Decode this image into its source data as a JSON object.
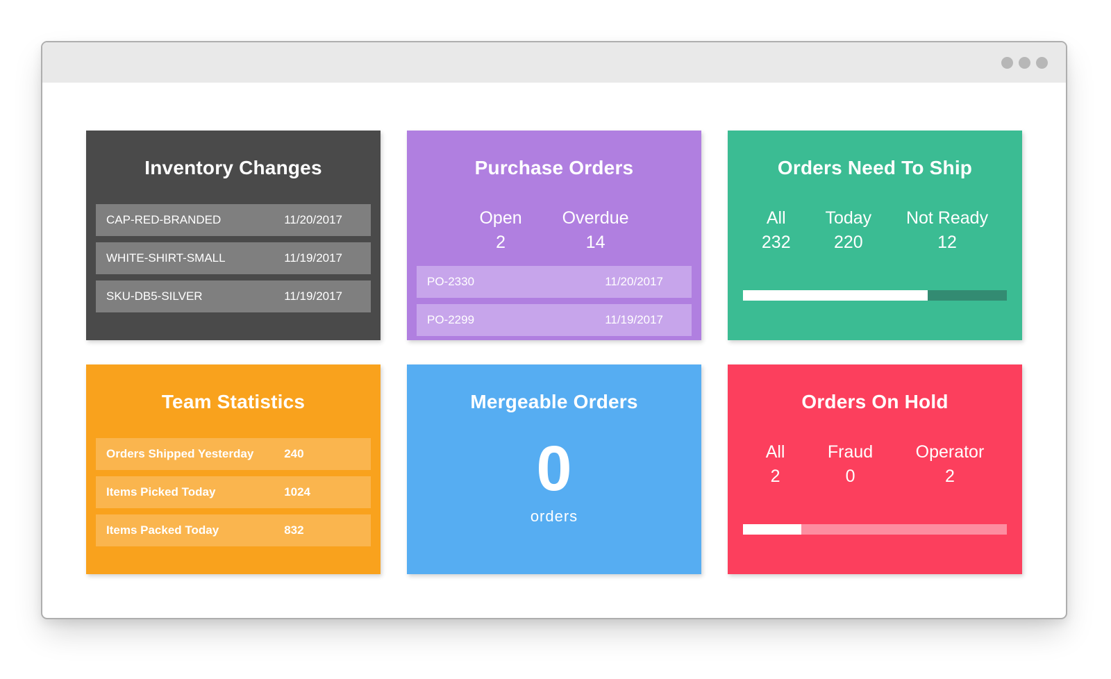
{
  "window": {
    "controls": [
      "dot",
      "dot",
      "dot"
    ]
  },
  "colors": {
    "titlebar_bg": "#e9e9e9",
    "window_border": "#aeaeae",
    "control_dot": "#b7b7b7",
    "dark_card": "#4a4a4a",
    "dark_row": "#7f7f7f",
    "purple_card": "#b07fe0",
    "purple_row": "#c7a5eb",
    "green_card": "#3bbc93",
    "green_track": "#338b72",
    "orange_card": "#f9a21d",
    "orange_row": "#fab54e",
    "blue_card": "#56adf2",
    "red_card": "#fc3f5d",
    "red_track": "#fd8da0"
  },
  "cards": {
    "inventory": {
      "title": "Inventory Changes",
      "rows": [
        {
          "label": "CAP-RED-BRANDED",
          "value": "11/20/2017"
        },
        {
          "label": "WHITE-SHIRT-SMALL",
          "value": "11/19/2017"
        },
        {
          "label": "SKU-DB5-SILVER",
          "value": "11/19/2017"
        }
      ]
    },
    "purchase": {
      "title": "Purchase Orders",
      "stats": [
        {
          "label": "Open",
          "value": "2"
        },
        {
          "label": "Overdue",
          "value": "14"
        }
      ],
      "rows": [
        {
          "label": "PO-2330",
          "value": "11/20/2017"
        },
        {
          "label": "PO-2299",
          "value": "11/19/2017"
        }
      ]
    },
    "ship": {
      "title": "Orders Need To Ship",
      "stats": [
        {
          "label": "All",
          "value": "232"
        },
        {
          "label": "Today",
          "value": "220"
        },
        {
          "label": "Not Ready",
          "value": "12"
        }
      ],
      "progress_pct": 70
    },
    "team": {
      "title": "Team Statistics",
      "rows": [
        {
          "label": "Orders Shipped Yesterday",
          "value": "240"
        },
        {
          "label": "Items Picked Today",
          "value": "1024"
        },
        {
          "label": "Items Packed Today",
          "value": "832"
        }
      ]
    },
    "mergeable": {
      "title": "Mergeable Orders",
      "count": "0",
      "unit": "orders"
    },
    "hold": {
      "title": "Orders On Hold",
      "stats": [
        {
          "label": "All",
          "value": "2"
        },
        {
          "label": "Fraud",
          "value": "0"
        },
        {
          "label": "Operator",
          "value": "2"
        }
      ],
      "progress_pct": 22
    }
  }
}
